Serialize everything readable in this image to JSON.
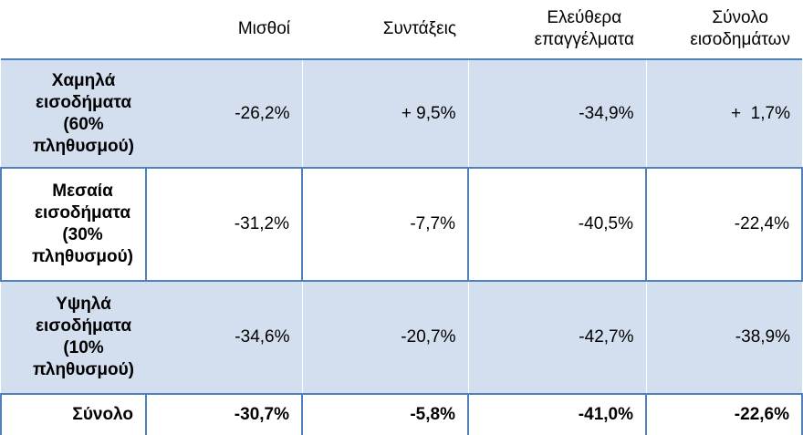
{
  "header": {
    "corner": "",
    "columns": [
      "Μισθοί",
      "Συντάξεις",
      "Ελεύθερα επαγγέλματα",
      "Σύνολο εισοδημάτων"
    ],
    "column_lines": [
      [
        "Μισθοί"
      ],
      [
        "Συντάξεις"
      ],
      [
        "Ελεύθερα",
        "επαγγέλματα"
      ],
      [
        "Σύνολο",
        "εισοδημάτων"
      ]
    ]
  },
  "rows": [
    {
      "label_lines": [
        "Χαμηλά",
        "εισοδήματα",
        "(60%",
        "πληθυσμού)"
      ],
      "values": [
        "-26,2%",
        "+ 9,5%",
        "-34,9%",
        "+  1,7%"
      ]
    },
    {
      "label_lines": [
        "Μεσαία",
        "εισοδήματα",
        "(30%",
        "πληθυσμού)"
      ],
      "values": [
        "-31,2%",
        "-7,7%",
        "-40,5%",
        "-22,4%"
      ]
    },
    {
      "label_lines": [
        "Υψηλά",
        "εισοδήματα",
        "(10%",
        "πληθυσμού)"
      ],
      "values": [
        "-34,6%",
        "-20,7%",
        "-42,7%",
        "-38,9%"
      ]
    },
    {
      "label_lines": [
        "Σύνολο"
      ],
      "values": [
        "-30,7%",
        "-5,8%",
        "-41,0%",
        "-22,6%"
      ]
    }
  ],
  "colors": {
    "band": "#d3dfee",
    "border": "#4f81bd",
    "text": "#000000"
  }
}
